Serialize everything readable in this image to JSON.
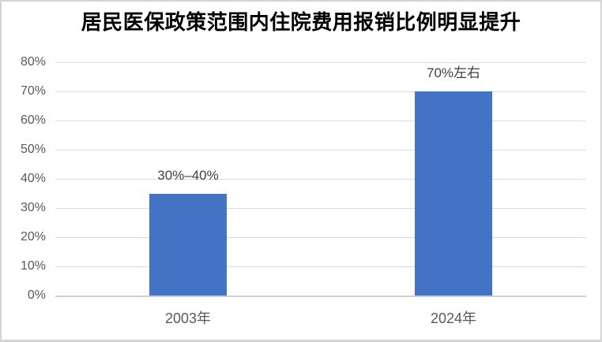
{
  "page": {
    "background_color": "#ffffff",
    "border_color": "#d4d4d4"
  },
  "chart_data": {
    "type": "bar",
    "title": "居民医保政策范围内住院费用报销比例明显提升",
    "categories": [
      "2003年",
      "2024年"
    ],
    "values": [
      35,
      70
    ],
    "data_labels": [
      "30%–40%",
      "70%左右"
    ],
    "y_tick_labels": [
      "0%",
      "10%",
      "20%",
      "30%",
      "40%",
      "50%",
      "60%",
      "70%",
      "80%"
    ],
    "ylim": [
      0,
      80
    ],
    "y_tick_step": 10,
    "xlabel": "",
    "ylabel": "",
    "grid": "horizontal",
    "legend_position": "none",
    "bar_color": "#4472C4",
    "gridline_color": "#DCDCDC",
    "axis_line_color": "#CFCFCF",
    "tick_label_color": "#595959",
    "data_label_color": "#404040",
    "title_color": "#000000"
  }
}
